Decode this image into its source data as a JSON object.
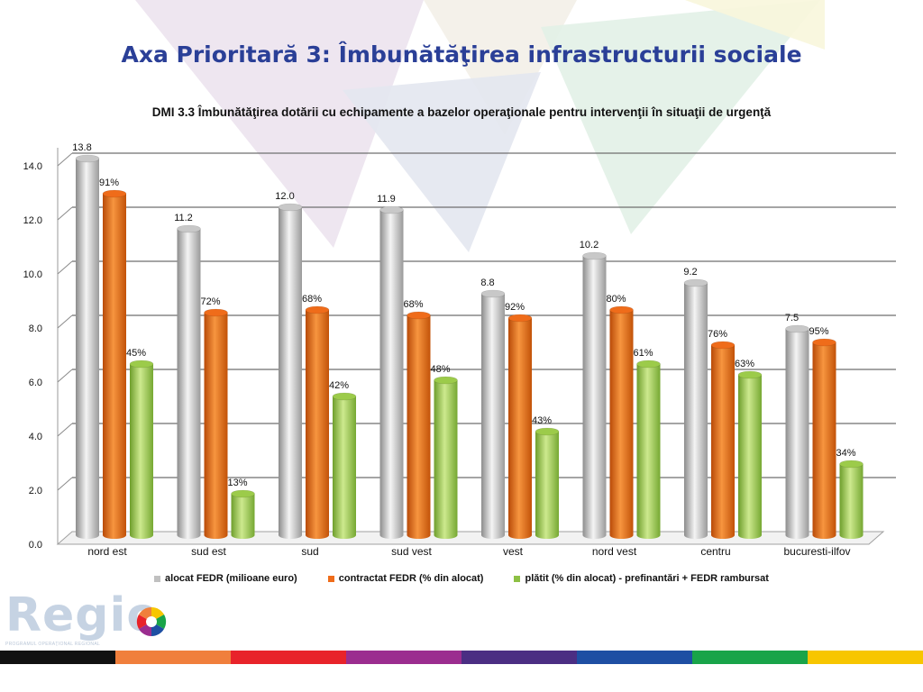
{
  "slide": {
    "title": "Axa Prioritară 3: Îmbunătăţirea infrastructurii sociale",
    "logo_text": "Regio",
    "logo_subtitle": "PROGRAMUL OPERAŢIONAL REGIONAL"
  },
  "colors": {
    "title": "#2a3f97",
    "series": [
      "#c8c8c8",
      "#ef6c1a",
      "#9ccb4a"
    ],
    "strip": [
      "#111111",
      "#f07f3c",
      "#e8232a",
      "#9b2d8f",
      "#4b2e83",
      "#1e4fa3",
      "#19a449",
      "#f7c600"
    ]
  },
  "chart_data": {
    "type": "bar",
    "title": "DMI 3.3 Îmbunătăţirea dotării cu echipamente a bazelor operaţionale pentru intervenţii în situaţii de urgenţă",
    "categories": [
      "nord est",
      "sud est",
      "sud",
      "sud vest",
      "vest",
      "nord vest",
      "centru",
      "bucuresti-ilfov"
    ],
    "ylim": [
      0,
      14
    ],
    "yticks": [
      "0.0",
      "2.0",
      "4.0",
      "6.0",
      "8.0",
      "10.0",
      "12.0",
      "14.0"
    ],
    "grid": true,
    "legend_position": "bottom",
    "series": [
      {
        "name": "alocat FEDR (milioane euro)",
        "values": [
          13.8,
          11.2,
          12.0,
          11.9,
          8.8,
          10.2,
          9.2,
          7.5
        ],
        "labels": [
          "13.8",
          "11.2",
          "12.0",
          "11.9",
          "8.8",
          "10.2",
          "9.2",
          "7.5"
        ]
      },
      {
        "name": "contractat FEDR (% din alocat)",
        "values": [
          12.5,
          8.1,
          8.2,
          8.0,
          7.9,
          8.2,
          6.9,
          7.0
        ],
        "labels": [
          "91%",
          "72%",
          "68%",
          "68%",
          "92%",
          "80%",
          "76%",
          "95%"
        ]
      },
      {
        "name": "plătit (% din alocat) - prefinantări + FEDR rambursat",
        "values": [
          6.2,
          1.4,
          5.0,
          5.6,
          3.7,
          6.2,
          5.8,
          2.5
        ],
        "labels": [
          "45%",
          "13%",
          "42%",
          "48%",
          "43%",
          "61%",
          "63%",
          "34%"
        ]
      }
    ]
  }
}
